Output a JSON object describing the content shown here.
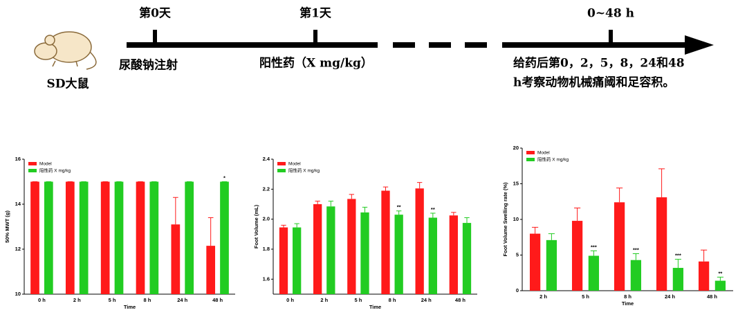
{
  "timeline": {
    "day0": "第0天",
    "day1": "第1天",
    "end": "0~48 h",
    "animal": "SD大鼠",
    "injection": "尿酸钠注射",
    "drug": "阳性药（X mg/kg）",
    "measure_line1": "给药后第0，2，5，8，24和48",
    "measure_line2": "h考察动物机械痛阈和足容积。"
  },
  "chart_data": [
    {
      "type": "bar",
      "y_label": "50% MWT (g)",
      "x_label": "Time",
      "categories": [
        "0 h",
        "2 h",
        "5 h",
        "8 h",
        "24 h",
        "48 h"
      ],
      "ylim": [
        10,
        16
      ],
      "yticks": [
        10,
        12,
        14,
        16
      ],
      "legend": "top-left",
      "series": [
        {
          "name": "Model",
          "color": "#ff1a1a",
          "values": [
            15,
            15,
            15,
            15,
            13.1,
            12.15
          ],
          "errors": [
            0,
            0,
            0,
            0,
            1.2,
            1.25
          ]
        },
        {
          "name": "阳性药 X mg/kg",
          "color": "#22cc22",
          "values": [
            15,
            15,
            15,
            15,
            15,
            15
          ],
          "errors": [
            0,
            0,
            0,
            0,
            0,
            0
          ],
          "sig_labels": [
            null,
            null,
            null,
            null,
            null,
            "*"
          ]
        }
      ]
    },
    {
      "type": "bar",
      "y_label": "Foot Volume (mL)",
      "x_label": "Time",
      "categories": [
        "0 h",
        "2 h",
        "5 h",
        "8 h",
        "24 h",
        "48 h"
      ],
      "ylim": [
        1.5,
        2.4
      ],
      "yticks": [
        1.6,
        1.8,
        {
          "value": 2.0,
          "label": "2.0"
        },
        2.2,
        2.4
      ],
      "legend": "top-left",
      "series": [
        {
          "name": "Model",
          "color": "#ff1a1a",
          "values": [
            1.945,
            2.1,
            2.135,
            2.19,
            2.205,
            2.025
          ],
          "errors": [
            0.015,
            0.02,
            0.03,
            0.025,
            0.04,
            0.02
          ]
        },
        {
          "name": "阳性药 X mg/kg",
          "color": "#22cc22",
          "values": [
            1.945,
            2.085,
            2.045,
            2.03,
            2.01,
            1.975
          ],
          "errors": [
            0.025,
            0.035,
            0.035,
            0.025,
            0.03,
            0.035
          ],
          "sig_labels": [
            null,
            null,
            null,
            "**",
            "**",
            null
          ]
        }
      ]
    },
    {
      "type": "bar",
      "y_label": "Foot Volume Swelling rate (%)",
      "x_label": "Time",
      "categories": [
        "2 h",
        "5 h",
        "8 h",
        "24 h",
        "48 h"
      ],
      "ylim": [
        0,
        20
      ],
      "yticks": [
        0,
        5,
        10,
        15,
        20
      ],
      "legend": "top-left",
      "series": [
        {
          "name": "Model",
          "color": "#ff1a1a",
          "values": [
            8.0,
            9.8,
            12.4,
            13.1,
            4.1
          ],
          "errors": [
            0.9,
            1.8,
            2.0,
            4.0,
            1.6
          ]
        },
        {
          "name": "阳性药 X mg/kg",
          "color": "#22cc22",
          "values": [
            7.1,
            4.9,
            4.3,
            3.2,
            1.4
          ],
          "errors": [
            0.9,
            0.7,
            0.9,
            1.2,
            0.5
          ],
          "sig_labels": [
            null,
            "***",
            "***",
            "***",
            "**"
          ]
        }
      ]
    }
  ]
}
